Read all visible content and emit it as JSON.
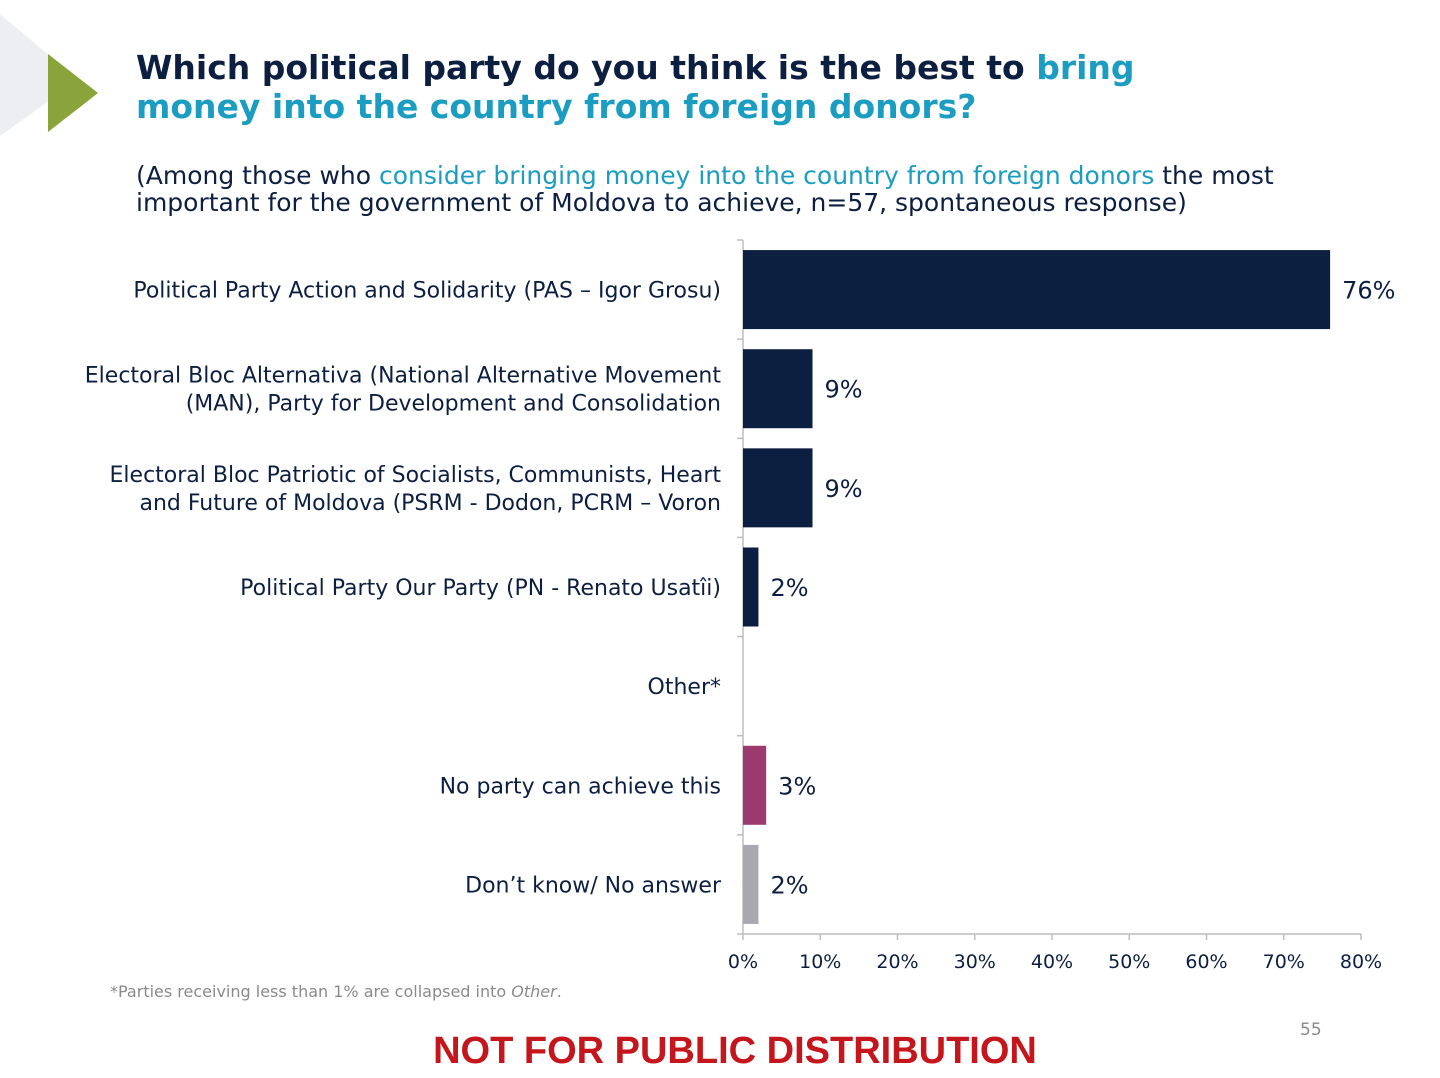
{
  "title": {
    "part1": "Which political party do you think is the best to ",
    "highlight": "bring money into the country from foreign donors?"
  },
  "subtitle": {
    "part1": "(Among those who ",
    "highlight": "consider bringing money into the country from foreign donors",
    "part2": " the most important for the government of Moldova to achieve, n=57, spontaneous response)"
  },
  "colors": {
    "navy": "#0d1f40",
    "magenta": "#9b3a6e",
    "gray": "#a8a8ae",
    "accent_blue": "#1b9dc1",
    "arrow_green": "#8aa33a",
    "banner_red": "#c4161c"
  },
  "chart_data": {
    "type": "bar",
    "orientation": "horizontal",
    "categories": [
      [
        "Political Party Action and Solidarity (PAS – Igor Grosu)"
      ],
      [
        "Electoral Bloc Alternativa (National Alternative Movement",
        "(MAN), Party for Development and Consolidation"
      ],
      [
        "Electoral Bloc Patriotic of Socialists, Communists, Heart",
        "and Future of Moldova (PSRM - Dodon, PCRM – Voron"
      ],
      [
        "Political Party Our Party (PN - Renato Usatîi)"
      ],
      [
        "Other*"
      ],
      [
        "No party can achieve this"
      ],
      [
        "Don’t know/ No answer"
      ]
    ],
    "values": [
      76,
      9,
      9,
      2,
      null,
      3,
      2
    ],
    "value_labels": [
      "76%",
      "9%",
      "9%",
      "2%",
      "",
      "3%",
      "2%"
    ],
    "bar_colors": [
      "navy",
      "navy",
      "navy",
      "navy",
      "navy",
      "magenta",
      "gray"
    ],
    "x_ticks": [
      "0%",
      "10%",
      "20%",
      "30%",
      "40%",
      "50%",
      "60%",
      "70%",
      "80%"
    ],
    "xlim": [
      0,
      80
    ],
    "grid": false
  },
  "footnote": {
    "text": "*Parties receiving less than 1% are collapsed into ",
    "emph": "Other",
    "end": "."
  },
  "page_number": "55",
  "banner": "NOT FOR PUBLIC DISTRIBUTION"
}
